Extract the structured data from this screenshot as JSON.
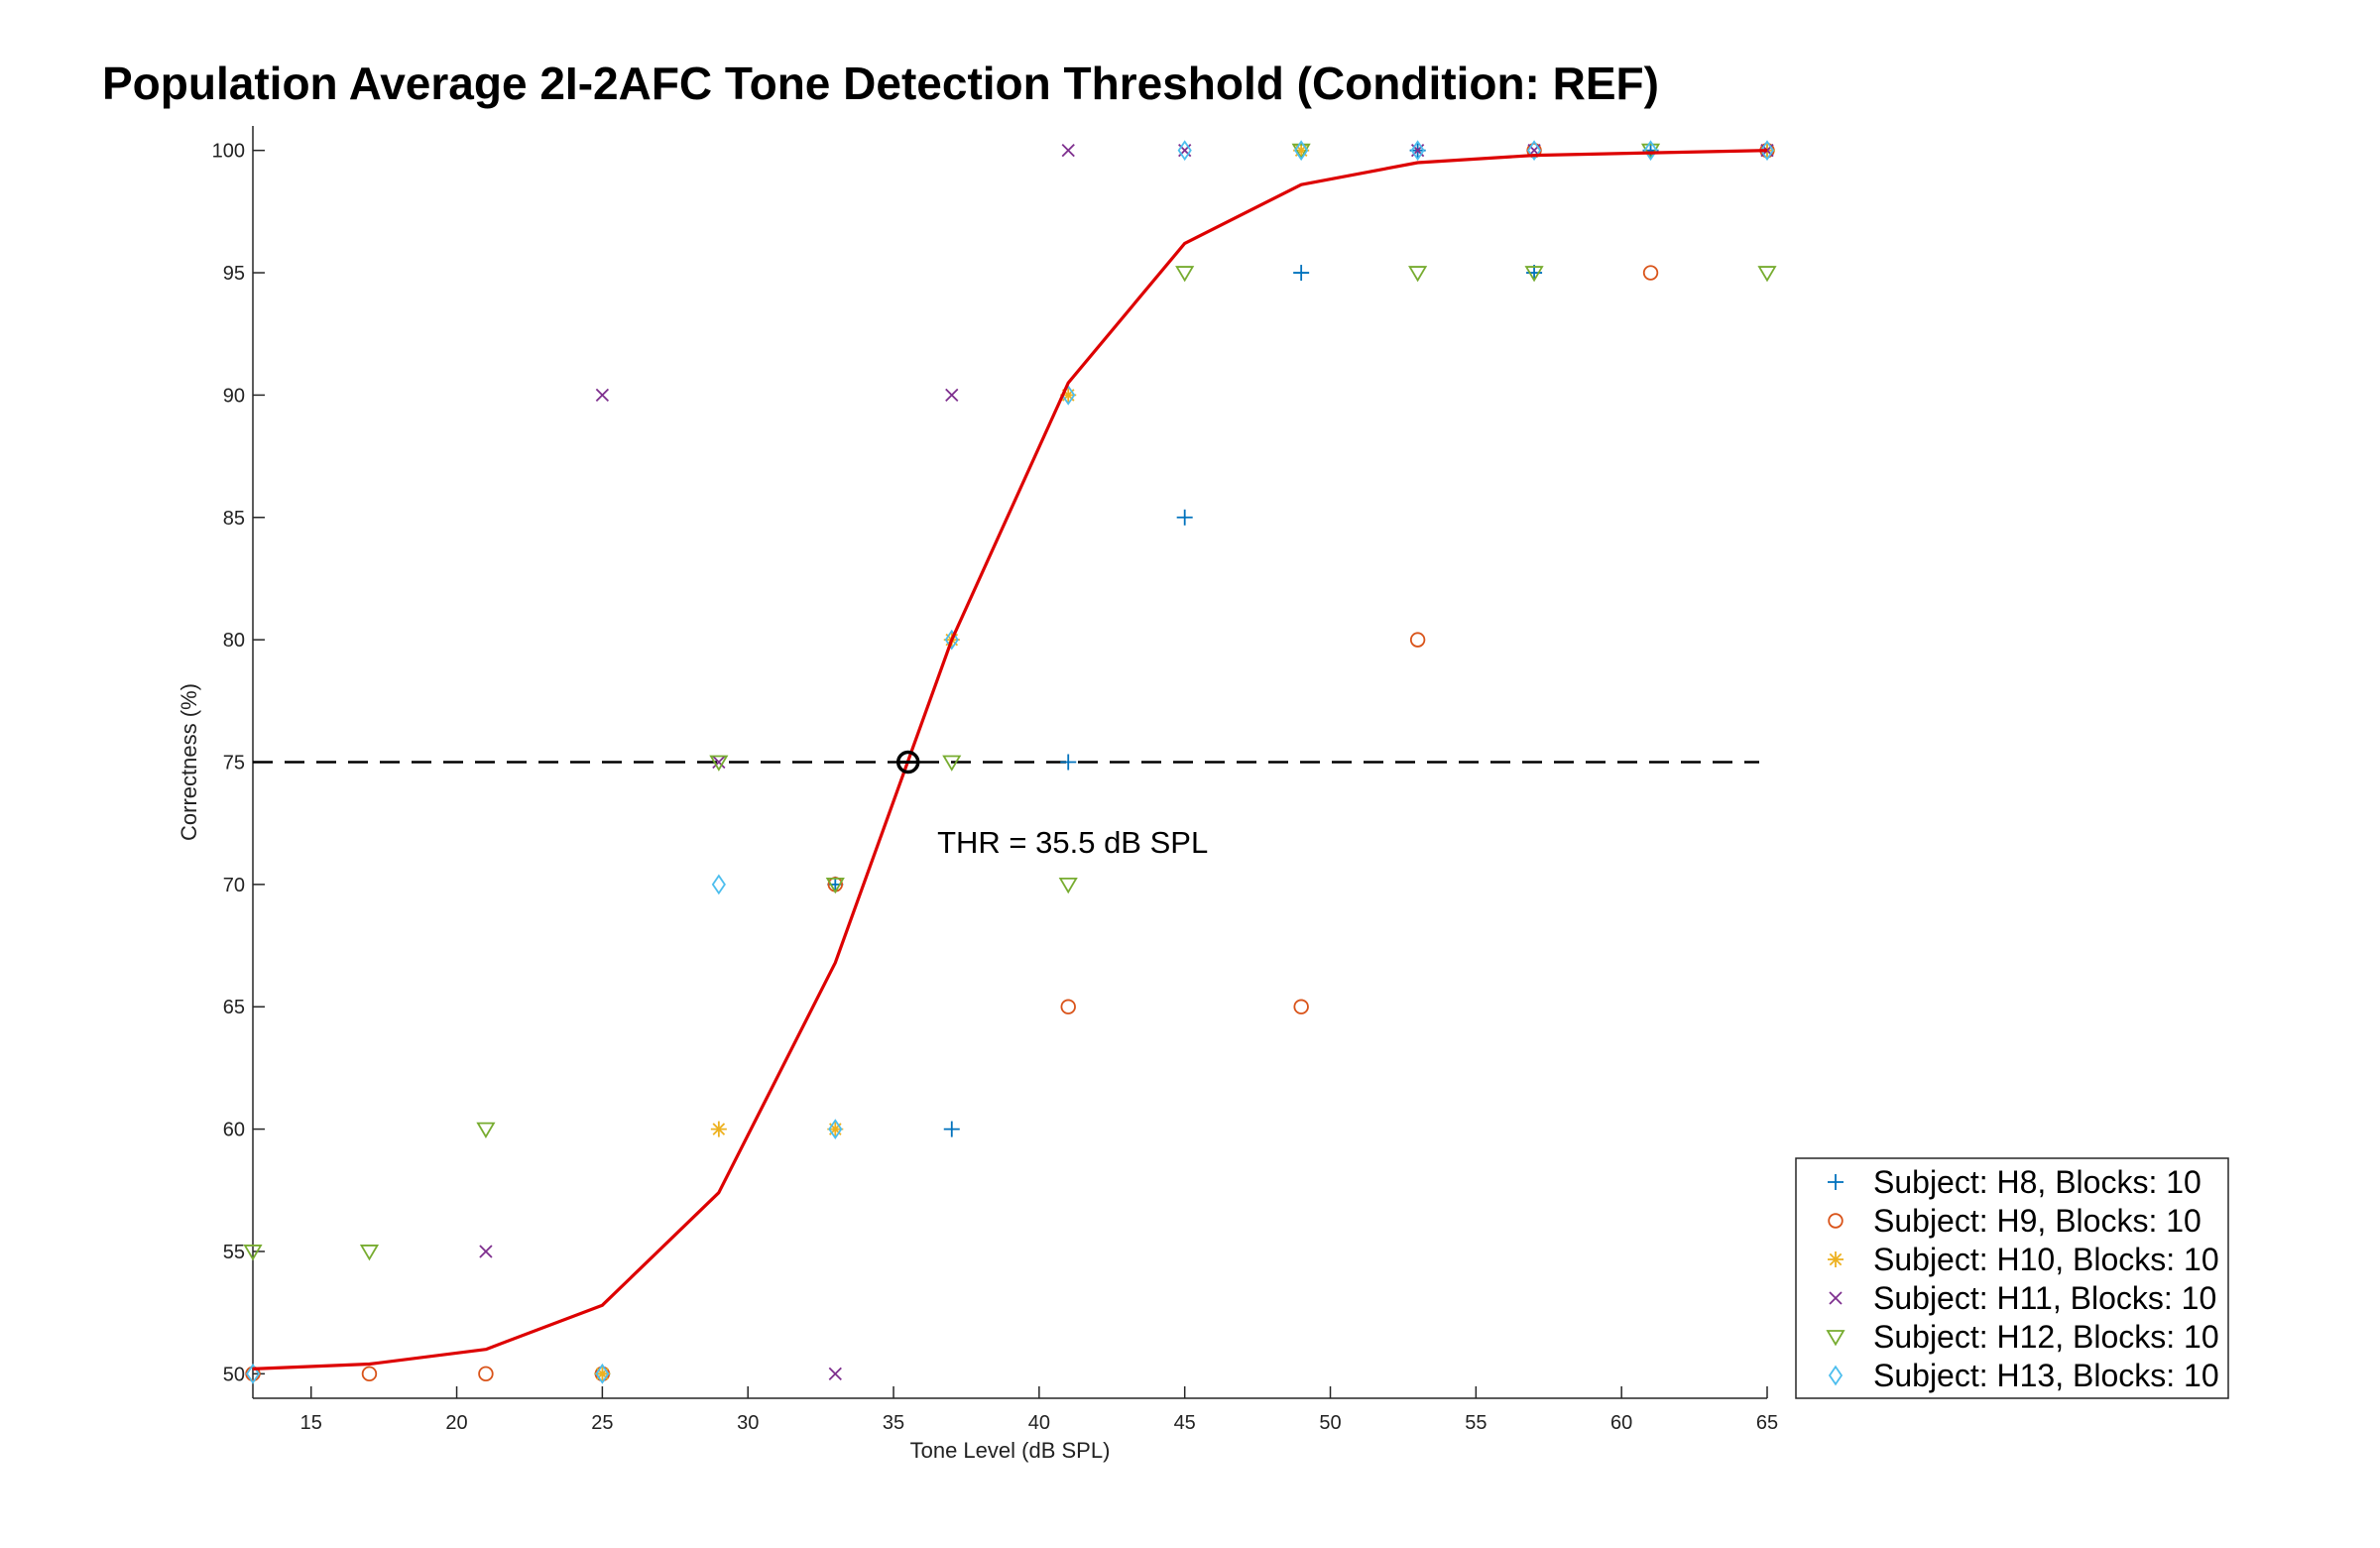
{
  "chart_data": {
    "type": "scatter",
    "title": "Population Average 2I-2AFC Tone Detection Threshold (Condition: REF)",
    "xlabel": "Tone Level (dB SPL)",
    "ylabel": "Correctness (%)",
    "xlim": [
      13,
      65
    ],
    "ylim": [
      49,
      101
    ],
    "xticks": [
      15,
      20,
      25,
      30,
      35,
      40,
      45,
      50,
      55,
      60,
      65
    ],
    "yticks": [
      50,
      55,
      60,
      65,
      70,
      75,
      80,
      85,
      90,
      95,
      100
    ],
    "grid": false,
    "legend_position": "bottom-right outside",
    "series": [
      {
        "name": "Subject: H8, Blocks: 10",
        "marker": "plus",
        "color": "#0072BD",
        "points": [
          [
            25,
            50
          ],
          [
            33,
            70
          ],
          [
            37,
            60
          ],
          [
            41,
            75
          ],
          [
            45,
            85
          ],
          [
            49,
            95
          ],
          [
            53,
            100
          ],
          [
            57,
            95
          ],
          [
            61,
            100
          ],
          [
            65,
            100
          ]
        ]
      },
      {
        "name": "Subject: H9, Blocks: 10",
        "marker": "circle",
        "color": "#D95319",
        "points": [
          [
            13,
            50
          ],
          [
            17,
            50
          ],
          [
            21,
            50
          ],
          [
            25,
            50
          ],
          [
            33,
            70
          ],
          [
            41,
            65
          ],
          [
            49,
            65
          ],
          [
            53,
            80
          ],
          [
            57,
            100
          ],
          [
            61,
            95
          ],
          [
            65,
            100
          ]
        ]
      },
      {
        "name": "Subject: H10, Blocks: 10",
        "marker": "asterisk",
        "color": "#EDB120",
        "points": [
          [
            25,
            50
          ],
          [
            29,
            60
          ],
          [
            33,
            60
          ],
          [
            37,
            80
          ],
          [
            41,
            90
          ],
          [
            49,
            100
          ],
          [
            65,
            100
          ]
        ]
      },
      {
        "name": "Subject: H11, Blocks: 10",
        "marker": "x",
        "color": "#7E2F8E",
        "points": [
          [
            21,
            55
          ],
          [
            25,
            90
          ],
          [
            29,
            75
          ],
          [
            33,
            50
          ],
          [
            37,
            90
          ],
          [
            41,
            100
          ],
          [
            45,
            100
          ],
          [
            53,
            100
          ],
          [
            57,
            100
          ],
          [
            65,
            100
          ]
        ]
      },
      {
        "name": "Subject: H12, Blocks: 10",
        "marker": "triangle-down",
        "color": "#77AC30",
        "points": [
          [
            13,
            55
          ],
          [
            17,
            55
          ],
          [
            21,
            60
          ],
          [
            29,
            75
          ],
          [
            33,
            70
          ],
          [
            37,
            75
          ],
          [
            41,
            70
          ],
          [
            45,
            95
          ],
          [
            49,
            100
          ],
          [
            53,
            95
          ],
          [
            57,
            95
          ],
          [
            61,
            100
          ],
          [
            65,
            95
          ]
        ]
      },
      {
        "name": "Subject: H13, Blocks: 10",
        "marker": "diamond",
        "color": "#4DBEEE",
        "points": [
          [
            13,
            50
          ],
          [
            25,
            50
          ],
          [
            29,
            70
          ],
          [
            33,
            60
          ],
          [
            37,
            80
          ],
          [
            41,
            90
          ],
          [
            45,
            100
          ],
          [
            49,
            100
          ],
          [
            53,
            100
          ],
          [
            57,
            100
          ],
          [
            61,
            100
          ],
          [
            65,
            100
          ]
        ]
      }
    ],
    "fit_curve": {
      "color": "#DD0000",
      "x": [
        13,
        17,
        21,
        25,
        29,
        33,
        37,
        41,
        45,
        49,
        53,
        57,
        61,
        65
      ],
      "y": [
        50.2,
        50.4,
        51.0,
        52.8,
        57.4,
        66.8,
        80.0,
        90.5,
        96.2,
        98.6,
        99.5,
        99.8,
        99.9,
        100
      ]
    },
    "reference_line": {
      "y": 75,
      "style": "dashed",
      "color": "#000000"
    },
    "threshold_point": {
      "x": 35.5,
      "y": 75
    },
    "annotation": {
      "text": "THR = 35.5 dB SPL",
      "x": 36.5,
      "y": 71.3
    }
  }
}
